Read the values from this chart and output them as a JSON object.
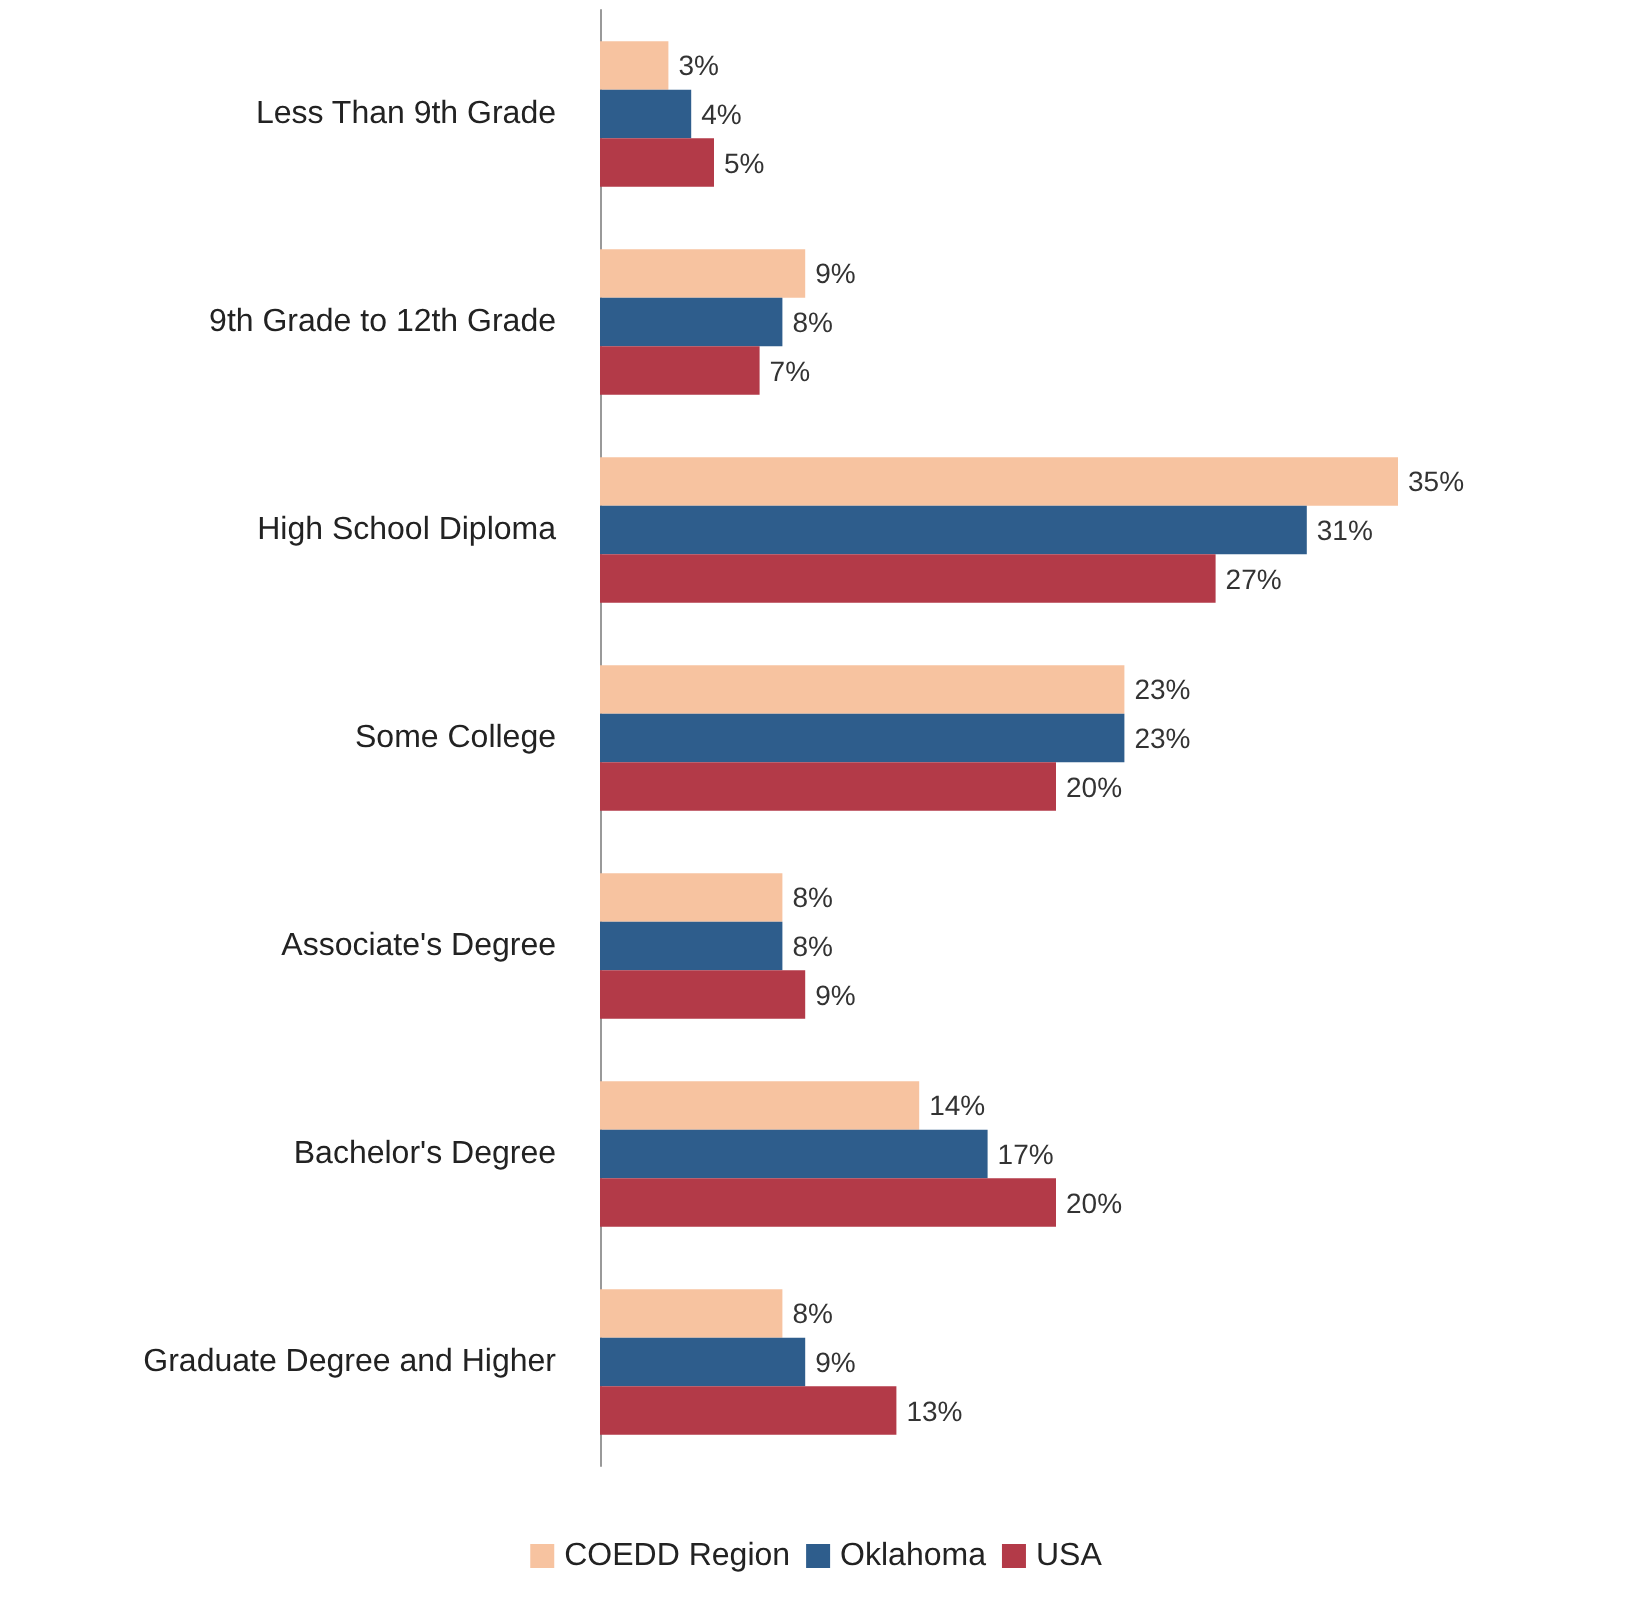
{
  "chart_data": {
    "type": "bar",
    "orientation": "horizontal",
    "categories": [
      "Less Than 9th Grade",
      "9th Grade to 12th Grade",
      "High School Diploma",
      "Some College",
      "Associate's Degree",
      "Bachelor's Degree",
      "Graduate Degree and Higher"
    ],
    "series": [
      {
        "name": "COEDD Region",
        "color": "#f7c3a0",
        "values": [
          3,
          9,
          35,
          23,
          8,
          14,
          8
        ],
        "value_labels": [
          "3%",
          "9%",
          "35%",
          "23%",
          "8%",
          "14%",
          "8%"
        ]
      },
      {
        "name": "Oklahoma",
        "color": "#2e5d8c",
        "values": [
          4,
          8,
          31,
          23,
          8,
          17,
          9
        ],
        "value_labels": [
          "4%",
          "8%",
          "31%",
          "23%",
          "8%",
          "17%",
          "9%"
        ]
      },
      {
        "name": "USA",
        "color": "#b33a48",
        "values": [
          5,
          7,
          27,
          20,
          9,
          20,
          13
        ],
        "value_labels": [
          "5%",
          "7%",
          "27%",
          "20%",
          "9%",
          "20%",
          "13%"
        ]
      }
    ],
    "legend": "bottom",
    "grid": false
  }
}
